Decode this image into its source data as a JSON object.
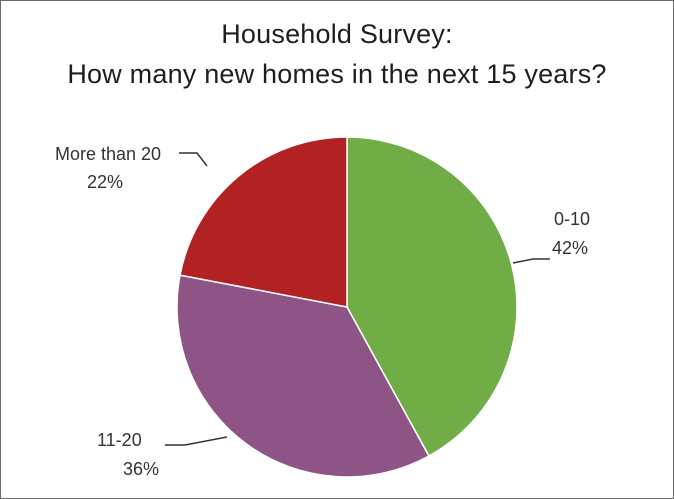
{
  "chart_data": {
    "type": "pie",
    "title_lines": [
      "Household Survey:",
      "How many new homes in the next 15 years?"
    ],
    "slices": [
      {
        "label": "0-10",
        "value": 42,
        "value_label": "42%",
        "color": "#70ad47"
      },
      {
        "label": "11-20",
        "value": 36,
        "value_label": "36%",
        "color": "#8e5486"
      },
      {
        "label": "More than 20",
        "value": 22,
        "value_label": "22%",
        "color": "#b22222"
      }
    ],
    "start_angle": "12 o'clock",
    "direction": "clockwise",
    "labels": "outside with leader lines"
  }
}
